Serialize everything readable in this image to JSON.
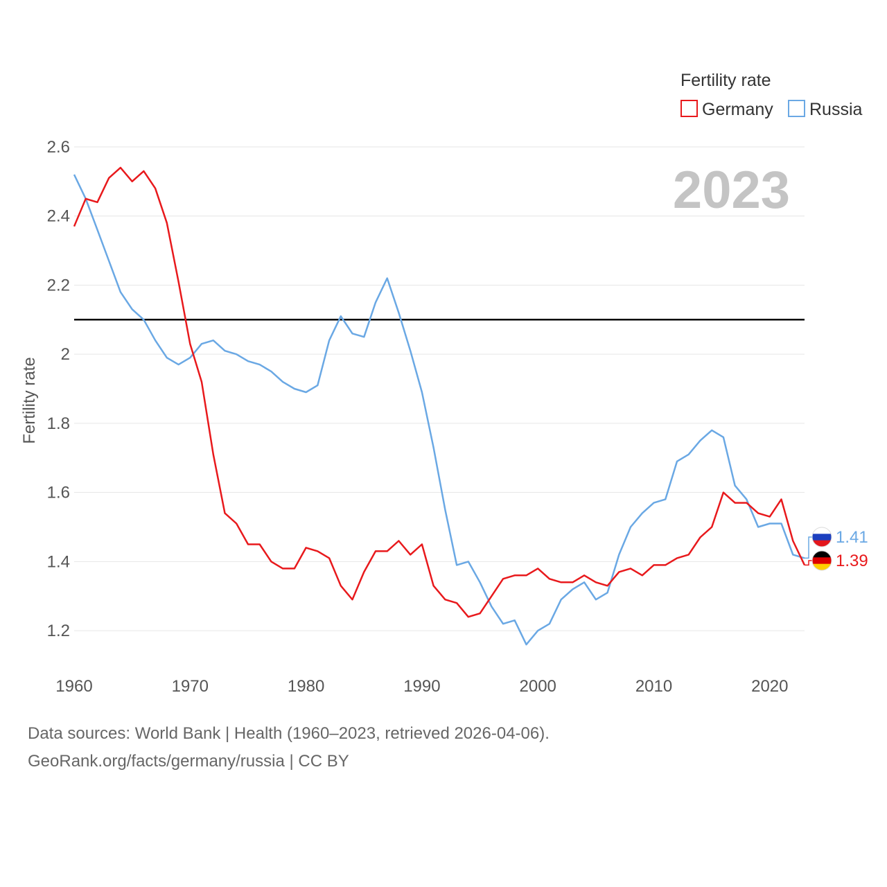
{
  "chart_data": {
    "type": "line",
    "ylabel": "Fertility rate",
    "xlabel": "",
    "year_label": "2023",
    "legend_title": "Fertility rate",
    "xlim": [
      1960,
      2023
    ],
    "ylim": [
      1.1,
      2.63
    ],
    "x_ticks": [
      1960,
      1970,
      1980,
      1990,
      2000,
      2010,
      2020
    ],
    "y_ticks": [
      1.2,
      1.4,
      1.6,
      1.8,
      2,
      2.2,
      2.4,
      2.6
    ],
    "y_tick_labels": [
      "1.2",
      "1.4",
      "1.6",
      "1.8",
      "2",
      "2.2",
      "2.4",
      "2.6"
    ],
    "x_tick_labels": [
      "1960",
      "1970",
      "1980",
      "1990",
      "2000",
      "2010",
      "2020"
    ],
    "reference_line": {
      "y": 2.1,
      "color": "#000000"
    },
    "x": [
      1960,
      1961,
      1962,
      1963,
      1964,
      1965,
      1966,
      1967,
      1968,
      1969,
      1970,
      1971,
      1972,
      1973,
      1974,
      1975,
      1976,
      1977,
      1978,
      1979,
      1980,
      1981,
      1982,
      1983,
      1984,
      1985,
      1986,
      1987,
      1988,
      1989,
      1990,
      1991,
      1992,
      1993,
      1994,
      1995,
      1996,
      1997,
      1998,
      1999,
      2000,
      2001,
      2002,
      2003,
      2004,
      2005,
      2006,
      2007,
      2008,
      2009,
      2010,
      2011,
      2012,
      2013,
      2014,
      2015,
      2016,
      2017,
      2018,
      2019,
      2020,
      2021,
      2022,
      2023
    ],
    "series": [
      {
        "name": "Germany",
        "color": "#e8191c",
        "end_label": "1.39",
        "values": [
          2.37,
          2.45,
          2.44,
          2.51,
          2.54,
          2.5,
          2.53,
          2.48,
          2.38,
          2.21,
          2.03,
          1.92,
          1.71,
          1.54,
          1.51,
          1.45,
          1.45,
          1.4,
          1.38,
          1.38,
          1.44,
          1.43,
          1.41,
          1.33,
          1.29,
          1.37,
          1.43,
          1.43,
          1.46,
          1.42,
          1.45,
          1.33,
          1.29,
          1.28,
          1.24,
          1.25,
          1.3,
          1.35,
          1.36,
          1.36,
          1.38,
          1.35,
          1.34,
          1.34,
          1.36,
          1.34,
          1.33,
          1.37,
          1.38,
          1.36,
          1.39,
          1.39,
          1.41,
          1.42,
          1.47,
          1.5,
          1.6,
          1.57,
          1.57,
          1.54,
          1.53,
          1.58,
          1.46,
          1.39
        ]
      },
      {
        "name": "Russia",
        "color": "#6aa8e4",
        "end_label": "1.41",
        "values": [
          2.52,
          2.45,
          2.36,
          2.27,
          2.18,
          2.13,
          2.1,
          2.04,
          1.99,
          1.97,
          1.99,
          2.03,
          2.04,
          2.01,
          2.0,
          1.98,
          1.97,
          1.95,
          1.92,
          1.9,
          1.89,
          1.91,
          2.04,
          2.11,
          2.06,
          2.05,
          2.15,
          2.22,
          2.12,
          2.01,
          1.89,
          1.73,
          1.55,
          1.39,
          1.4,
          1.34,
          1.27,
          1.22,
          1.23,
          1.16,
          1.2,
          1.22,
          1.29,
          1.32,
          1.34,
          1.29,
          1.31,
          1.42,
          1.5,
          1.54,
          1.57,
          1.58,
          1.69,
          1.71,
          1.75,
          1.78,
          1.76,
          1.62,
          1.58,
          1.5,
          1.51,
          1.51,
          1.42,
          1.41
        ]
      }
    ]
  },
  "footer": {
    "source": "Data sources: World Bank | Health (1960–2023, retrieved 2026-04-06).",
    "credit": "GeoRank.org/facts/germany/russia | CC BY"
  }
}
